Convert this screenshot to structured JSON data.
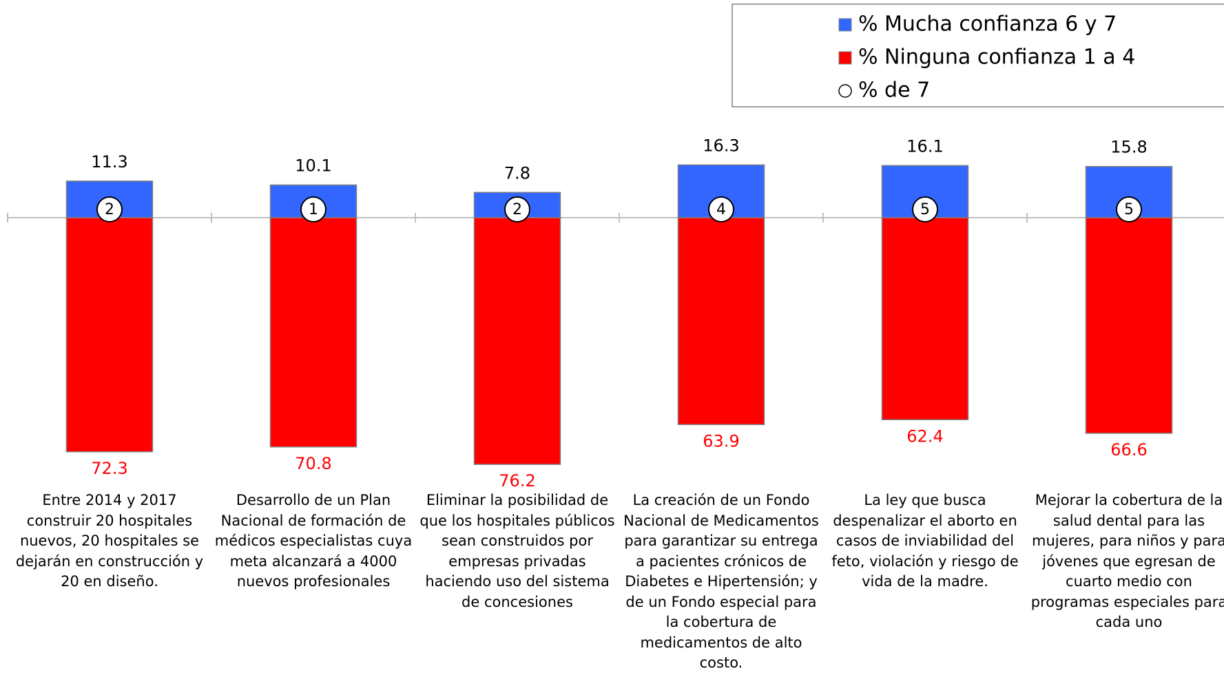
{
  "chart_data": {
    "type": "bar",
    "categories": [
      "Entre 2014 y 2017\nconstruir  20 hospitales\nnuevos, 20 hospitales se\ndejarán en construcción y\n20 en diseño.",
      "Desarrollo de un Plan\nNacional de formación de\nmédicos especialistas cuya\nmeta alcanzará a 4000\nnuevos profesionales",
      "Eliminar la posibilidad de\nque los hospitales públicos\nsean construidos por\nempresas privadas\nhaciendo uso del sistema\nde concesiones",
      "La creación de un Fondo\nNacional de Medicamentos\npara garantizar su entrega\na pacientes crónicos de\nDiabetes e Hipertensión; y\nde un Fondo especial para\nla cobertura de\nmedicamentos de alto\ncosto.",
      "La  ley que busca\ndespenalizar el aborto en\ncasos de inviabilidad del\nfeto, violación y riesgo de\nvida de la madre.",
      "Mejorar la cobertura de la\nsalud dental para las\nmujeres, para niños y para\njóvenes que egresan de\ncuarto medio con\nprogramas especiales para\ncada uno"
    ],
    "series": [
      {
        "name": "% Mucha confianza 6 y 7",
        "color": "#3366ff",
        "values": [
          11.3,
          10.1,
          7.8,
          16.3,
          16.1,
          15.8
        ]
      },
      {
        "name": "% Ninguna confianza 1 a 4",
        "color": "#ff0000",
        "values": [
          72.3,
          70.8,
          76.2,
          63.9,
          62.4,
          66.6
        ]
      },
      {
        "name": "% de 7",
        "color": "#ffffff",
        "values": [
          2,
          1,
          2,
          4,
          5,
          5
        ]
      }
    ]
  }
}
